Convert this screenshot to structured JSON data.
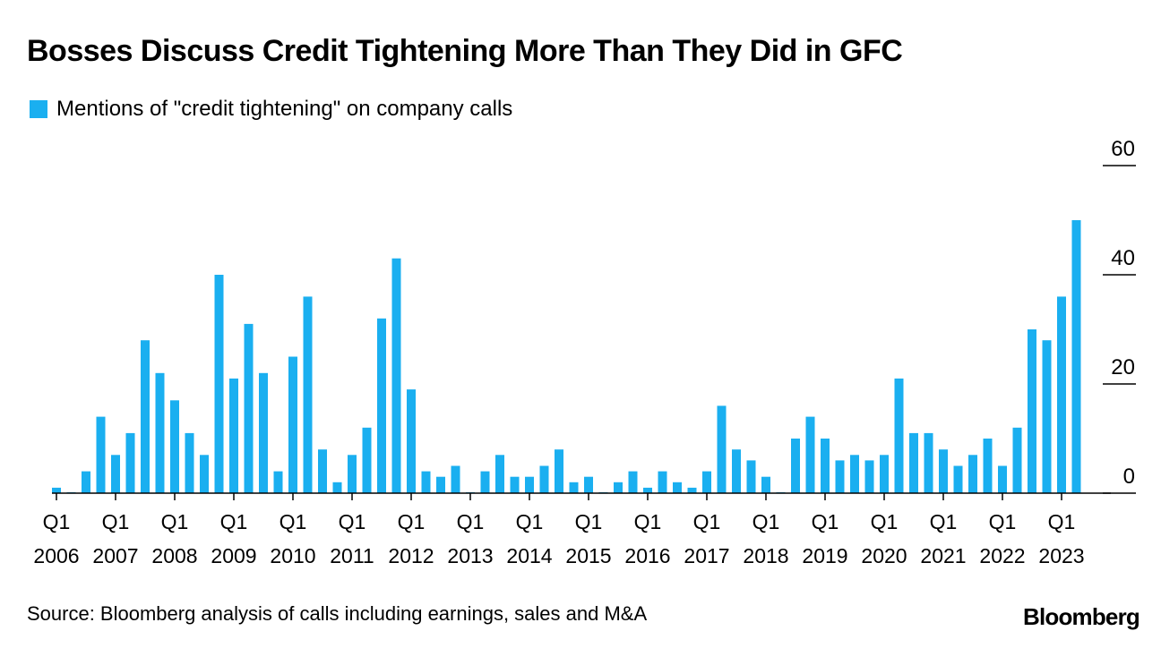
{
  "title": "Bosses Discuss Credit Tightening More Than They Did in GFC",
  "source": "Source: Bloomberg analysis of calls including earnings, sales and M&A",
  "brand": "Bloomberg",
  "colors": {
    "bar": "#1aaff0",
    "axis": "#000000"
  },
  "chart_data": {
    "type": "bar",
    "title": "Bosses Discuss Credit Tightening More Than They Did in GFC",
    "xlabel": "",
    "ylabel": "",
    "ylim": [
      0,
      60
    ],
    "yticks": [
      0,
      20,
      40,
      60
    ],
    "ytick_labels": [
      "0",
      "20",
      "40",
      "60"
    ],
    "grid": false,
    "legend_position": "top-left",
    "xtick_labels": [
      {
        "top": "Q1",
        "bottom": "2006",
        "index": 0
      },
      {
        "top": "Q1",
        "bottom": "2007",
        "index": 4
      },
      {
        "top": "Q1",
        "bottom": "2008",
        "index": 8
      },
      {
        "top": "Q1",
        "bottom": "2009",
        "index": 12
      },
      {
        "top": "Q1",
        "bottom": "2010",
        "index": 16
      },
      {
        "top": "Q1",
        "bottom": "2011",
        "index": 20
      },
      {
        "top": "Q1",
        "bottom": "2012",
        "index": 24
      },
      {
        "top": "Q1",
        "bottom": "2013",
        "index": 28
      },
      {
        "top": "Q1",
        "bottom": "2014",
        "index": 32
      },
      {
        "top": "Q1",
        "bottom": "2015",
        "index": 36
      },
      {
        "top": "Q1",
        "bottom": "2016",
        "index": 40
      },
      {
        "top": "Q1",
        "bottom": "2017",
        "index": 44
      },
      {
        "top": "Q1",
        "bottom": "2018",
        "index": 48
      },
      {
        "top": "Q1",
        "bottom": "2019",
        "index": 52
      },
      {
        "top": "Q1",
        "bottom": "2020",
        "index": 56
      },
      {
        "top": "Q1",
        "bottom": "2021",
        "index": 60
      },
      {
        "top": "Q1",
        "bottom": "2022",
        "index": 64
      },
      {
        "top": "Q1",
        "bottom": "2023",
        "index": 68
      }
    ],
    "categories": [
      "Q1 2006",
      "Q2 2006",
      "Q3 2006",
      "Q4 2006",
      "Q1 2007",
      "Q2 2007",
      "Q3 2007",
      "Q4 2007",
      "Q1 2008",
      "Q2 2008",
      "Q3 2008",
      "Q4 2008",
      "Q1 2009",
      "Q2 2009",
      "Q3 2009",
      "Q4 2009",
      "Q1 2010",
      "Q2 2010",
      "Q3 2010",
      "Q4 2010",
      "Q1 2011",
      "Q2 2011",
      "Q3 2011",
      "Q4 2011",
      "Q1 2012",
      "Q2 2012",
      "Q3 2012",
      "Q4 2012",
      "Q1 2013",
      "Q2 2013",
      "Q3 2013",
      "Q4 2013",
      "Q1 2014",
      "Q2 2014",
      "Q3 2014",
      "Q4 2014",
      "Q1 2015",
      "Q2 2015",
      "Q3 2015",
      "Q4 2015",
      "Q1 2016",
      "Q2 2016",
      "Q3 2016",
      "Q4 2016",
      "Q1 2017",
      "Q2 2017",
      "Q3 2017",
      "Q4 2017",
      "Q1 2018",
      "Q2 2018",
      "Q3 2018",
      "Q4 2018",
      "Q1 2019",
      "Q2 2019",
      "Q3 2019",
      "Q4 2019",
      "Q1 2020",
      "Q2 2020",
      "Q3 2020",
      "Q4 2020",
      "Q1 2021",
      "Q2 2021",
      "Q3 2021",
      "Q4 2021",
      "Q1 2022",
      "Q2 2022",
      "Q3 2022",
      "Q4 2022",
      "Q1 2023",
      "Q2 2023"
    ],
    "series": [
      {
        "name": "Mentions of \"credit tightening\" on company calls",
        "values": [
          1,
          0,
          4,
          14,
          7,
          11,
          28,
          22,
          17,
          11,
          7,
          40,
          21,
          31,
          22,
          4,
          25,
          36,
          8,
          2,
          7,
          12,
          32,
          43,
          19,
          4,
          3,
          5,
          0,
          4,
          7,
          3,
          3,
          5,
          8,
          2,
          3,
          0,
          2,
          4,
          1,
          4,
          2,
          1,
          4,
          16,
          8,
          6,
          3,
          0,
          10,
          14,
          10,
          6,
          7,
          6,
          7,
          21,
          11,
          11,
          8,
          5,
          7,
          10,
          5,
          12,
          30,
          28,
          36,
          50
        ]
      }
    ]
  }
}
